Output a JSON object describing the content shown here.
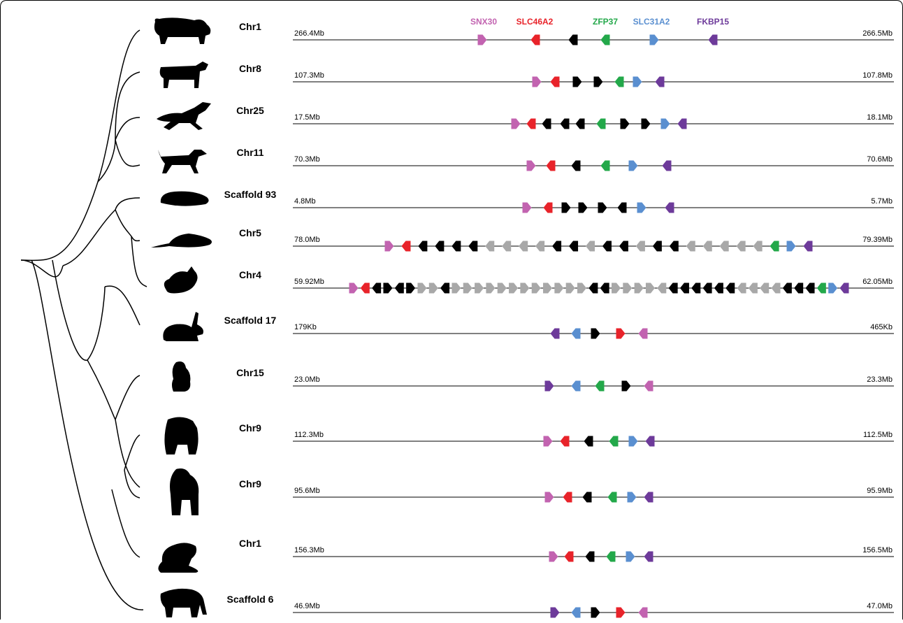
{
  "colors": {
    "SNX30": "#c263b0",
    "SLC46A2": "#e8232a",
    "ZFP37": "#23a84a",
    "SLC31A2": "#5a8fd0",
    "FKBP15": "#6d3a9a",
    "other": "#000000",
    "grey": "#a8a8a8"
  },
  "legend": [
    {
      "label": "SNX30",
      "key": "SNX30"
    },
    {
      "label": "SLC46A2",
      "key": "SLC46A2"
    },
    {
      "label": "ZFP37",
      "key": "ZFP37"
    },
    {
      "label": "SLC31A2",
      "key": "SLC31A2"
    },
    {
      "label": "FKBP15",
      "key": "FKBP15"
    }
  ],
  "tracks": [
    {
      "animal": "pig-icon",
      "chrom": "Chr1",
      "start": "266.4Mb",
      "end": "266.5Mb",
      "genes": "P:SNX30:R,R:SLC46A2:L,K:L,G:ZFP37:L,B:SLC31A2:R,V:FKBP15:L"
    },
    {
      "animal": "cow-icon",
      "chrom": "Chr8",
      "start": "107.3Mb",
      "end": "107.8Mb",
      "genes": "P:R,R:L,K:R,K:R,G:L,B:R,V:L"
    },
    {
      "animal": "horse-icon",
      "chrom": "Chr25",
      "start": "17.5Mb",
      "end": "18.1Mb",
      "genes": "P:R,R:L,K:L,K:L,K:L,G:L,K:R,K:R,B:R,V:L"
    },
    {
      "animal": "dog-icon",
      "chrom": "Chr11",
      "start": "70.3Mb",
      "end": "70.6Mb",
      "genes": "P:R,R:L,K:L,G:L,B:R,V:L"
    },
    {
      "animal": "guinea-pig-icon",
      "chrom": "Scaffold 93",
      "start": "4.8Mb",
      "end": "5.7Mb",
      "genes": "P:R,R:L,K:R,K:R,K:R,K:L,B:R,V:L"
    },
    {
      "animal": "rat-icon",
      "chrom": "Chr5",
      "start": "78.0Mb",
      "end": "79.39Mb",
      "genes": "P:R,R:L,K:L,K:L,K:L,K:L,Y:L,Y:L,Y:L,Y:L,K:L,K:L,Y:L,K:L,K:L,Y:L,K:L,K:L,Y:L,Y:L,Y:L,Y:L,Y:L,G:L,B:R,V:L"
    },
    {
      "animal": "mouse-icon",
      "chrom": "Chr4",
      "start": "59.92Mb",
      "end": "62.05Mb",
      "genes": "P:R,R:L,K:L,K:R,K:L,K:R,Y:R,Y:R,K:L,Y:R,Y:R,Y:R,Y:R,Y:R,Y:R,Y:R,Y:R,Y:R,Y:R,Y:R,Y:R,K:L,K:L,Y:R,Y:R,Y:R,Y:R,Y:L,K:L,K:L,K:L,K:L,K:L,K:L,Y:L,Y:L,Y:L,Y:L,K:L,K:L,K:L,G:L,B:R,V:L"
    },
    {
      "animal": "rabbit-icon",
      "chrom": "Scaffold 17",
      "start": "179Kb",
      "end": "465Kb",
      "genes": "V:L,B:L,K:R,R:R,P:L"
    },
    {
      "animal": "gibbon-icon",
      "chrom": "Chr15",
      "start": "23.0Mb",
      "end": "23.3Mb",
      "genes": "V:R,B:L,G:L,K:R,P:L"
    },
    {
      "animal": "chimpanzee-icon",
      "chrom": "Chr9",
      "start": "112.3Mb",
      "end": "112.5Mb",
      "genes": "P:R,R:L,K:L,G:L,B:R,V:L"
    },
    {
      "animal": "gorilla-icon",
      "chrom": "Chr9",
      "start": "95.6Mb",
      "end": "95.9Mb",
      "genes": "P:R,R:L,K:L,G:L,B:R,V:L"
    },
    {
      "animal": "marmoset-icon",
      "chrom": "Chr1",
      "start": "156.3Mb",
      "end": "156.5Mb",
      "genes": "P:R,R:L,K:L,G:L,B:R,V:L"
    },
    {
      "animal": "elephant-icon",
      "chrom": "Scaffold 6",
      "start": "46.9Mb",
      "end": "47.0Mb",
      "genes": "V:R,B:L,K:R,R:R,P:L"
    }
  ]
}
